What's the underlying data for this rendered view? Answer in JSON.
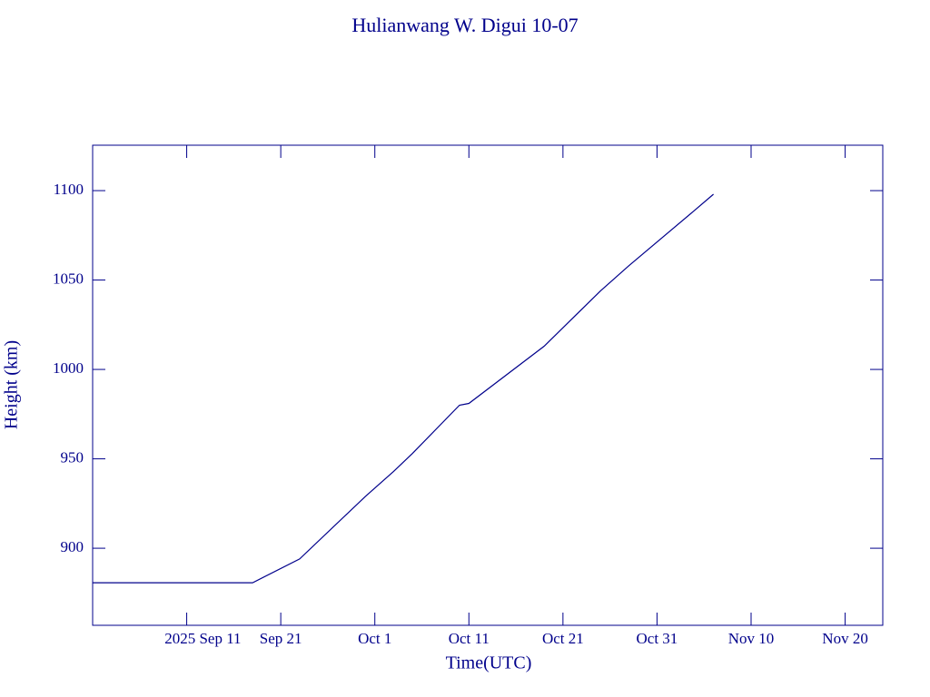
{
  "chart_data": {
    "type": "line",
    "title": "Hulianwang W. Digui 10-07",
    "x_label": "Time(UTC)",
    "y_label": "Height (km)",
    "x": [
      "2025-09-01",
      "2025-09-18",
      "2025-09-23",
      "2025-09-30",
      "2025-10-03",
      "2025-10-05",
      "2025-10-10",
      "2025-10-11",
      "2025-10-19",
      "2025-10-25",
      "2025-10-28",
      "2025-11-04",
      "2025-11-06"
    ],
    "series": [
      {
        "name": "Height",
        "color": "#00008b",
        "values": [
          880.7,
          880.7,
          894,
          929,
          943,
          953,
          980,
          981,
          1013,
          1044,
          1058,
          1089,
          1098
        ]
      }
    ],
    "xlim": [
      "2025-09-01",
      "2025-11-24"
    ],
    "xticks": [
      {
        "value": "2025-09-11",
        "label": "2025 Sep 11"
      },
      {
        "value": "2025-09-21",
        "label": "Sep 21"
      },
      {
        "value": "2025-10-01",
        "label": "Oct  1"
      },
      {
        "value": "2025-10-11",
        "label": "Oct 11"
      },
      {
        "value": "2025-10-21",
        "label": "Oct 21"
      },
      {
        "value": "2025-10-31",
        "label": "Oct 31"
      },
      {
        "value": "2025-11-10",
        "label": "Nov 10"
      },
      {
        "value": "2025-11-20",
        "label": "Nov 20"
      }
    ],
    "ylim": [
      856.9,
      1125.4
    ],
    "yticks": [
      900,
      950,
      1000,
      1050,
      1100
    ]
  }
}
